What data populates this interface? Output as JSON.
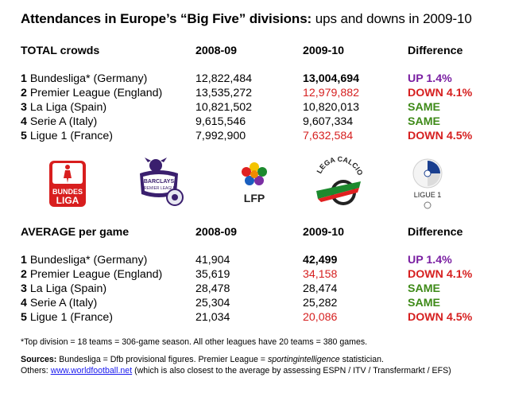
{
  "title": {
    "bold": "Attendances in Europe’s “Big Five” divisions:",
    "rest": " ups and downs in 2009-10"
  },
  "total": {
    "headers": [
      "TOTAL crowds",
      "2008-09",
      "2009-10",
      "Difference"
    ],
    "rows": [
      {
        "rank": "1",
        "league": "Bundesliga* (Germany)",
        "y1": "12,822,484",
        "y2": "13,004,694",
        "diff": "UP 1.4%",
        "y2_style": "bold",
        "diff_style": "purple"
      },
      {
        "rank": "2",
        "league": "Premier League (England)",
        "y1": "13,535,272",
        "y2": "12,979,882",
        "diff": "DOWN 4.1%",
        "y2_style": "red",
        "diff_style": "redb"
      },
      {
        "rank": "3",
        "league": "La Liga (Spain)",
        "y1": "10,821,502",
        "y2": "10,820,013",
        "diff": "SAME",
        "y2_style": "plain",
        "diff_style": "green"
      },
      {
        "rank": "4",
        "league": "Serie A (Italy)",
        "y1": "9,615,546",
        "y2": "9,607,334",
        "diff": "SAME",
        "y2_style": "plain",
        "diff_style": "green"
      },
      {
        "rank": "5",
        "league": "Ligue 1 (France)",
        "y1": "7,992,900",
        "y2": "7,632,584",
        "diff": "DOWN 4.5%",
        "y2_style": "red",
        "diff_style": "redb"
      }
    ]
  },
  "average": {
    "headers": [
      "AVERAGE per game",
      "2008-09",
      "2009-10",
      "Difference"
    ],
    "rows": [
      {
        "rank": "1",
        "league": "Bundesliga* (Germany)",
        "y1": "41,904",
        "y2": "42,499",
        "diff": "UP 1.4%",
        "y2_style": "bold",
        "diff_style": "purple"
      },
      {
        "rank": "2",
        "league": "Premier League (England)",
        "y1": "35,619",
        "y2": "34,158",
        "diff": "DOWN 4.1%",
        "y2_style": "red",
        "diff_style": "redb"
      },
      {
        "rank": "3",
        "league": "La Liga (Spain)",
        "y1": "28,478",
        "y2": "28,474",
        "diff": "SAME",
        "y2_style": "plain",
        "diff_style": "green"
      },
      {
        "rank": "4",
        "league": "Serie A (Italy)",
        "y1": "25,304",
        "y2": "25,282",
        "diff": "SAME",
        "y2_style": "plain",
        "diff_style": "green"
      },
      {
        "rank": "5",
        "league": "Ligue 1 (France)",
        "y1": "21,034",
        "y2": "20,086",
        "diff": "DOWN 4.5%",
        "y2_style": "red",
        "diff_style": "redb"
      }
    ]
  },
  "logos": {
    "bundesliga": [
      "BUNDES",
      "LIGA"
    ],
    "premier": [
      "BARCLAYS",
      "PREMIER LEAGUE"
    ],
    "laliga": "LFP",
    "seriea": "LEGA CALCIO",
    "ligue1": "LIGUE 1"
  },
  "footnote": "*Top division = 18 teams = 306-game season. All other leagues have 20 teams = 380 games.",
  "sources": {
    "label": "Sources:",
    "text1": " Bundesliga = Dfb provisional figures. Premier League = ",
    "italic": "sportingintelligence",
    "text2": " statistician.",
    "others_label": "Others: ",
    "link": "www.worldfootball.net",
    "others_rest": " (which is also closest to the average by assessing ESPN / ITV / Transfermarkt / EFS)"
  }
}
